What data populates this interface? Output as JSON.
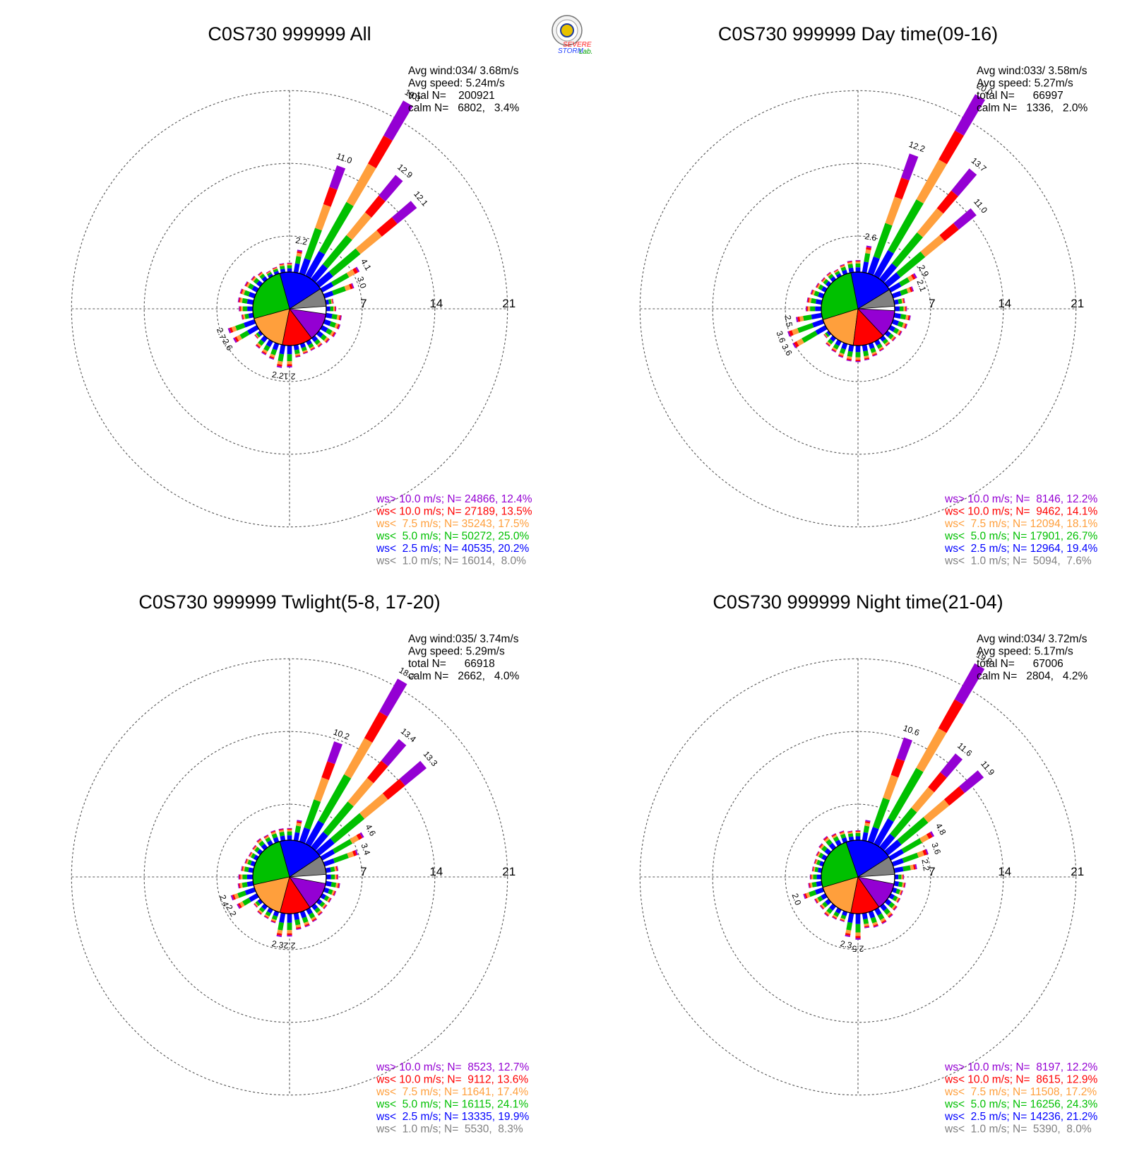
{
  "logo": {
    "text_severe": "SEVERE",
    "text_storm": "STORM",
    "text_lab": "Lab."
  },
  "colors": {
    "gt10": "#9400d3",
    "lt10": "#ff0000",
    "lt7_5": "#ff9f3c",
    "lt5": "#00c000",
    "lt2_5": "#0000ff",
    "lt1": "#808080",
    "calm": "#ffffff",
    "grid": "#555555"
  },
  "ring_labels": [
    "7",
    "14",
    "21"
  ],
  "chart_data": [
    {
      "type": "windrose",
      "title": "C0S730 999999 All",
      "stats": {
        "avg_wind": "Avg wind:034/ 3.68m/s",
        "avg_speed": "Avg speed: 5.24m/s",
        "total": "total N=    200921",
        "calm": "calm N=   6802,   3.4%"
      },
      "legend": [
        "ws> 10.0 m/s; N= 24866, 12.4%",
        "ws< 10.0 m/s; N= 27189, 13.5%",
        "ws<  7.5 m/s; N= 35243, 17.5%",
        "ws<  5.0 m/s; N= 50272, 25.0%",
        "ws<  2.5 m/s; N= 40535, 20.2%",
        "ws<  1.0 m/s; N= 16014,  8.0%"
      ],
      "pie_percent": [
        8.0,
        20.2,
        25.0,
        17.5,
        13.5,
        12.4
      ],
      "petals": [
        {
          "dir": 10,
          "total": 2.2,
          "label": "2.2"
        },
        {
          "dir": 20,
          "total": 11.0,
          "label": "11.0"
        },
        {
          "dir": 30,
          "total": 19.3,
          "label": "19.3"
        },
        {
          "dir": 40,
          "total": 12.9,
          "label": "12.9"
        },
        {
          "dir": 50,
          "total": 12.1,
          "label": "12.1"
        },
        {
          "dir": 60,
          "total": 4.1,
          "label": "4.1"
        },
        {
          "dir": 70,
          "total": 3.0,
          "label": "3.0"
        },
        {
          "dir": 180,
          "total": 2.1,
          "label": "2.1"
        },
        {
          "dir": 190,
          "total": 2.2,
          "label": "2.2"
        },
        {
          "dir": 240,
          "total": 2.6,
          "label": "2.6"
        },
        {
          "dir": 250,
          "total": 2.7,
          "label": "2.7"
        }
      ]
    },
    {
      "type": "windrose",
      "title": "C0S730 999999 Day time(09-16)",
      "stats": {
        "avg_wind": "Avg wind:033/ 3.58m/s",
        "avg_speed": "Avg speed: 5.27m/s",
        "total": "total N=      66997",
        "calm": "calm N=   1336,   2.0%"
      },
      "legend": [
        "ws> 10.0 m/s; N=  8146, 12.2%",
        "ws< 10.0 m/s; N=  9462, 14.1%",
        "ws<  7.5 m/s; N= 12094, 18.1%",
        "ws<  5.0 m/s; N= 17901, 26.7%",
        "ws<  2.5 m/s; N= 12964, 19.4%",
        "ws<  1.0 m/s; N=  5094,  7.6%"
      ],
      "pie_percent": [
        7.6,
        19.4,
        26.7,
        18.1,
        14.1,
        12.2
      ],
      "petals": [
        {
          "dir": 10,
          "total": 2.6,
          "label": "2.6"
        },
        {
          "dir": 20,
          "total": 12.2,
          "label": "12.2"
        },
        {
          "dir": 30,
          "total": 20.0,
          "label": "20.0"
        },
        {
          "dir": 40,
          "total": 13.7,
          "label": "13.7"
        },
        {
          "dir": 50,
          "total": 11.0,
          "label": "11.0"
        },
        {
          "dir": 60,
          "total": 2.9,
          "label": "2.9"
        },
        {
          "dir": 70,
          "total": 2.1,
          "label": "2.1"
        },
        {
          "dir": 240,
          "total": 3.6,
          "label": "3.6"
        },
        {
          "dir": 250,
          "total": 3.6,
          "label": "3.6"
        },
        {
          "dir": 260,
          "total": 2.5,
          "label": "2.5"
        }
      ]
    },
    {
      "type": "windrose",
      "title": "C0S730 999999 Twlight(5-8, 17-20)",
      "stats": {
        "avg_wind": "Avg wind:035/ 3.74m/s",
        "avg_speed": "Avg speed: 5.29m/s",
        "total": "total N=      66918",
        "calm": "calm N=   2662,   4.0%"
      },
      "legend": [
        "ws> 10.0 m/s; N=  8523, 12.7%",
        "ws< 10.0 m/s; N=  9112, 13.6%",
        "ws<  7.5 m/s; N= 11641, 17.4%",
        "ws<  5.0 m/s; N= 16115, 24.1%",
        "ws<  2.5 m/s; N= 13335, 19.9%",
        "ws<  1.0 m/s; N=  5530,  8.3%"
      ],
      "pie_percent": [
        8.3,
        19.9,
        24.1,
        17.4,
        13.6,
        12.7
      ],
      "petals": [
        {
          "dir": 10,
          "total": 2.0,
          "label": ""
        },
        {
          "dir": 20,
          "total": 10.2,
          "label": "10.2"
        },
        {
          "dir": 30,
          "total": 18.2,
          "label": "18.2"
        },
        {
          "dir": 40,
          "total": 13.4,
          "label": "13.4"
        },
        {
          "dir": 50,
          "total": 13.3,
          "label": "13.3"
        },
        {
          "dir": 60,
          "total": 4.6,
          "label": "4.6"
        },
        {
          "dir": 70,
          "total": 3.4,
          "label": "3.4"
        },
        {
          "dir": 180,
          "total": 2.2,
          "label": "2.2"
        },
        {
          "dir": 190,
          "total": 2.3,
          "label": "2.3"
        },
        {
          "dir": 240,
          "total": 2.2,
          "label": "2.2"
        },
        {
          "dir": 250,
          "total": 2.4,
          "label": "2.4"
        }
      ]
    },
    {
      "type": "windrose",
      "title": "C0S730 999999 Night time(21-04)",
      "stats": {
        "avg_wind": "Avg wind:034/ 3.72m/s",
        "avg_speed": "Avg speed: 5.17m/s",
        "total": "total N=      67006",
        "calm": "calm N=   2804,   4.2%"
      },
      "legend": [
        "ws> 10.0 m/s; N=  8197, 12.2%",
        "ws< 10.0 m/s; N=  8615, 12.9%",
        "ws<  7.5 m/s; N= 11508, 17.2%",
        "ws<  5.0 m/s; N= 16256, 24.3%",
        "ws<  2.5 m/s; N= 14236, 21.2%",
        "ws<  1.0 m/s; N=  5390,  8.0%"
      ],
      "pie_percent": [
        8.0,
        21.2,
        24.3,
        17.2,
        12.9,
        12.2
      ],
      "petals": [
        {
          "dir": 10,
          "total": 2.0,
          "label": ""
        },
        {
          "dir": 20,
          "total": 10.6,
          "label": "10.6"
        },
        {
          "dir": 30,
          "total": 19.9,
          "label": "19.9"
        },
        {
          "dir": 40,
          "total": 11.6,
          "label": "11.6"
        },
        {
          "dir": 50,
          "total": 11.9,
          "label": "11.9"
        },
        {
          "dir": 60,
          "total": 4.8,
          "label": "4.8"
        },
        {
          "dir": 70,
          "total": 3.6,
          "label": "3.6"
        },
        {
          "dir": 80,
          "total": 2.2,
          "label": "2.2"
        },
        {
          "dir": 180,
          "total": 2.5,
          "label": "2.5"
        },
        {
          "dir": 190,
          "total": 2.3,
          "label": "2.3"
        },
        {
          "dir": 250,
          "total": 2.0,
          "label": "2.0"
        }
      ]
    }
  ]
}
